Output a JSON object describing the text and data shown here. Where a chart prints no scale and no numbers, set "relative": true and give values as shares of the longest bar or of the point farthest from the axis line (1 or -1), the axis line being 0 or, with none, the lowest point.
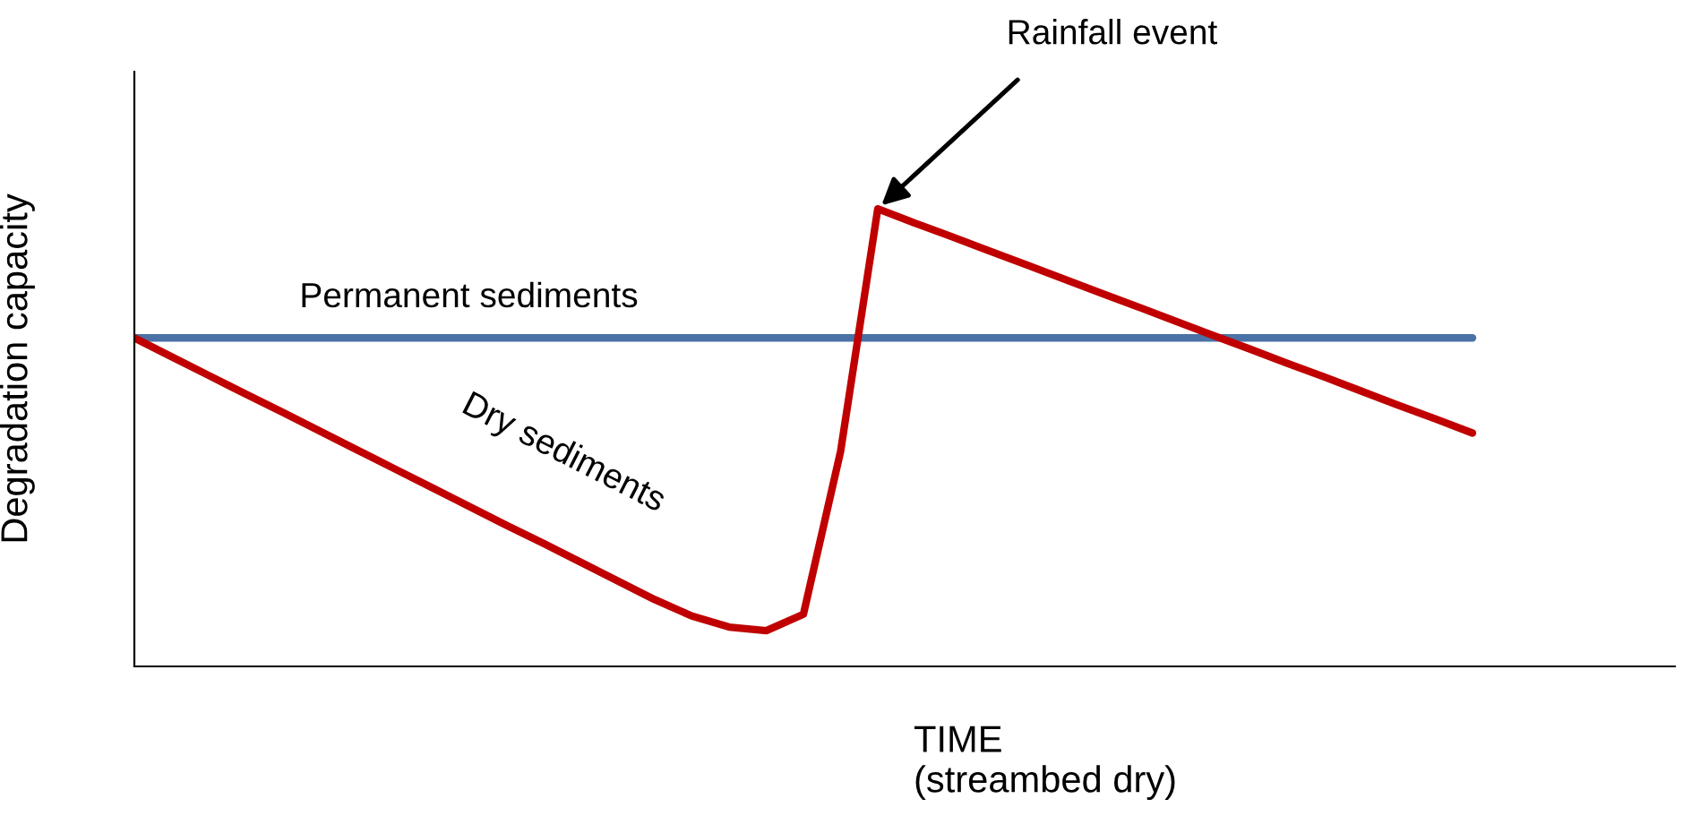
{
  "chart_data": {
    "type": "line",
    "relative": true,
    "ylabel": "Degradation capacity",
    "xlabel": "TIME\n(streambed dry)",
    "categories": [
      null,
      null,
      null,
      null,
      null,
      null,
      null,
      null,
      null,
      null,
      null,
      null,
      null,
      null,
      null,
      null,
      null,
      null,
      null,
      null,
      null,
      null,
      null,
      null,
      null,
      null,
      null,
      null,
      null,
      null,
      null,
      null,
      null,
      null,
      null,
      null,
      null
    ],
    "series": [
      {
        "name": "Permanent sediments",
        "color": "#4a72a6",
        "values": [
          0.718,
          0.718,
          0.718,
          0.718,
          0.718,
          0.718,
          0.718,
          0.718,
          0.718,
          0.718,
          0.718,
          0.718,
          0.718,
          0.718,
          0.718,
          0.718,
          0.718,
          0.718,
          0.718,
          0.718,
          0.718,
          0.718,
          0.718,
          0.718,
          0.718,
          0.718,
          0.718,
          0.718,
          0.718,
          0.718,
          0.718,
          0.718,
          0.718,
          0.718,
          0.718,
          0.718,
          0.718
        ]
      },
      {
        "name": "Dry sediments",
        "color": "#c00000",
        "values": [
          0.718,
          0.677,
          0.636,
          0.595,
          0.555,
          0.514,
          0.473,
          0.432,
          0.391,
          0.35,
          0.309,
          0.269,
          0.228,
          0.187,
          0.146,
          0.11,
          0.086,
          0.078,
          0.114,
          0.47,
          1.0,
          0.969,
          0.939,
          0.908,
          0.878,
          0.847,
          0.816,
          0.786,
          0.755,
          0.724,
          0.694,
          0.663,
          0.633,
          0.602,
          0.571,
          0.541,
          0.51
        ]
      }
    ],
    "annotations": [
      "Rainfall event"
    ],
    "grid": false,
    "legend": false,
    "marker": "none",
    "line_style": "solid"
  }
}
